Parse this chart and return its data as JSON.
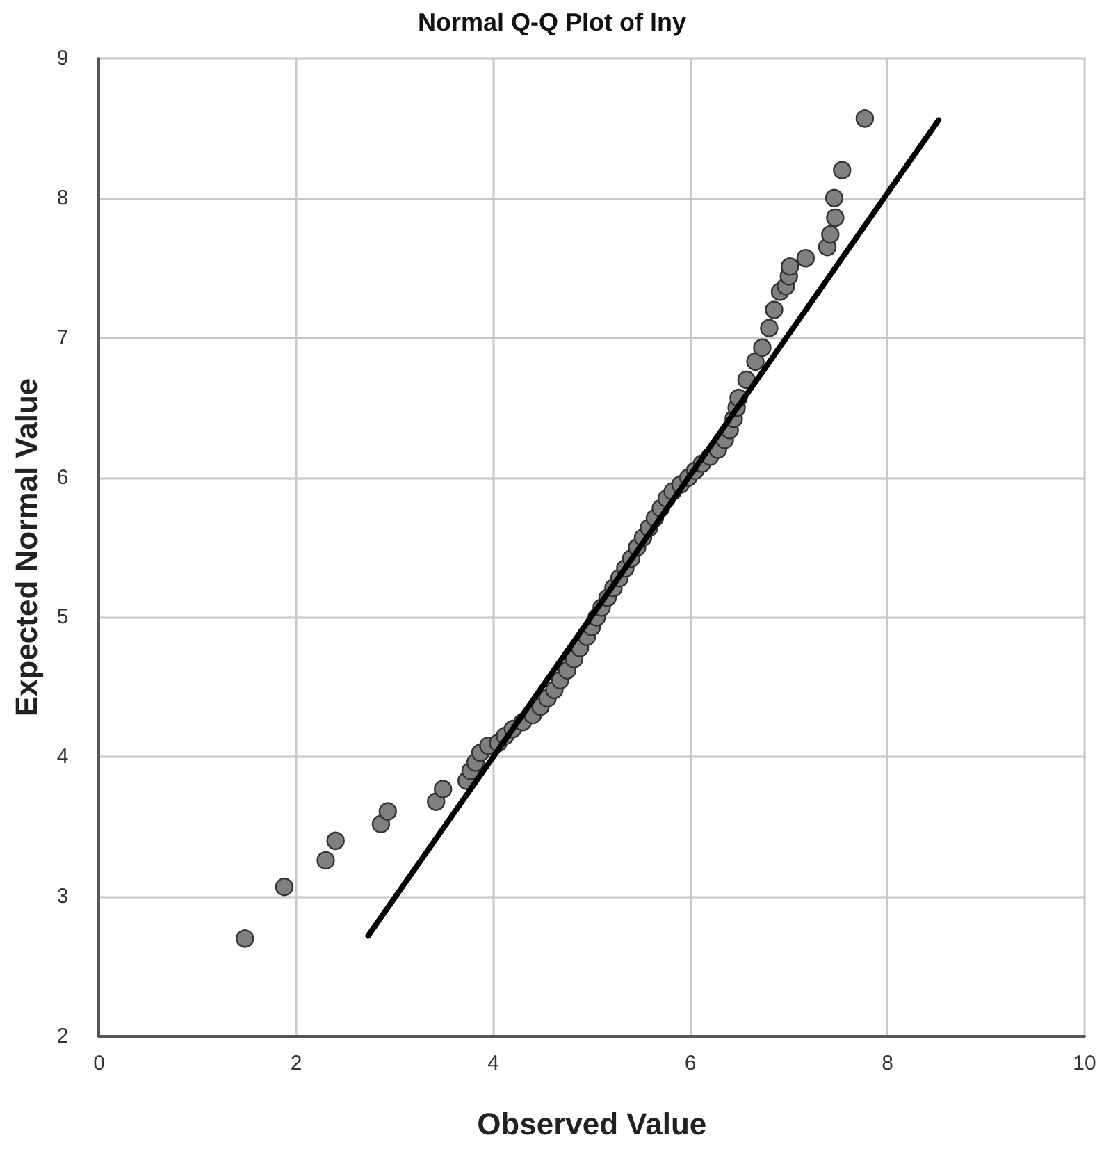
{
  "chart_data": {
    "type": "scatter",
    "title": "Normal Q-Q Plot of lny",
    "xlabel": "Observed Value",
    "ylabel": "Expected Normal Value",
    "xlim": [
      0,
      10
    ],
    "xticks": [
      0,
      2,
      4,
      6,
      8,
      10
    ],
    "ylim": [
      2,
      9
    ],
    "yticks": [
      2,
      3,
      4,
      5,
      6,
      7,
      8,
      9
    ],
    "grid": true,
    "series": [
      {
        "color": "#808080",
        "marker": "circle",
        "x": [
          1.48,
          1.88,
          2.3,
          2.4,
          2.86,
          2.93,
          3.42,
          3.49,
          3.73,
          3.77,
          3.82,
          3.87,
          3.95,
          4.05,
          4.12,
          4.2,
          4.3,
          4.4,
          4.48,
          4.55,
          4.62,
          4.68,
          4.75,
          4.82,
          4.88,
          4.95,
          5.0,
          5.05,
          5.1,
          5.16,
          5.22,
          5.28,
          5.34,
          5.4,
          5.46,
          5.52,
          5.58,
          5.64,
          5.7,
          5.76,
          5.82,
          5.9,
          5.98,
          6.05,
          6.12,
          6.2,
          6.28,
          6.35,
          6.4,
          6.44,
          6.47,
          6.49,
          6.57,
          6.66,
          6.73,
          6.8,
          6.85,
          6.91,
          6.97,
          7.0,
          7.01,
          7.17,
          7.39,
          7.42,
          7.47,
          7.46,
          7.54,
          7.77
        ],
        "values": [
          2.7,
          3.07,
          3.26,
          3.4,
          3.52,
          3.61,
          3.68,
          3.77,
          3.83,
          3.9,
          3.96,
          4.03,
          4.08,
          4.1,
          4.15,
          4.2,
          4.25,
          4.3,
          4.36,
          4.42,
          4.48,
          4.55,
          4.62,
          4.7,
          4.78,
          4.86,
          4.93,
          5.0,
          5.07,
          5.14,
          5.21,
          5.28,
          5.35,
          5.42,
          5.5,
          5.57,
          5.64,
          5.71,
          5.78,
          5.85,
          5.9,
          5.95,
          6.0,
          6.05,
          6.1,
          6.15,
          6.2,
          6.27,
          6.34,
          6.42,
          6.5,
          6.57,
          6.7,
          6.83,
          6.93,
          7.07,
          7.2,
          7.33,
          7.37,
          7.44,
          7.51,
          7.57,
          7.65,
          7.74,
          7.86,
          8.0,
          8.2,
          8.57
        ]
      },
      {
        "type": "line",
        "color": "#000000",
        "marker": "none",
        "line_style": "solid",
        "x": [
          2.73,
          8.52
        ],
        "values": [
          2.72,
          8.56
        ]
      }
    ]
  }
}
